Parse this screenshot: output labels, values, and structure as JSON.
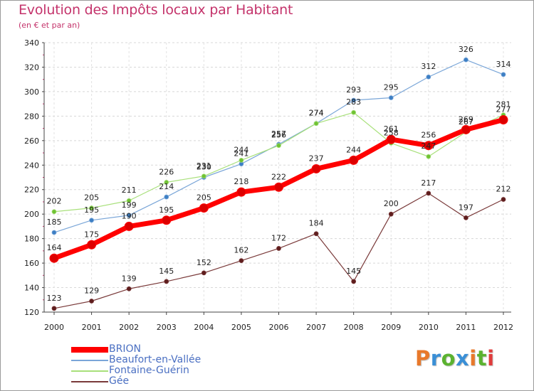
{
  "header": {
    "title": "Evolution des Impôts locaux par Habitant",
    "subtitle": "(en € et par an)"
  },
  "logo": {
    "text": "Proxiti",
    "letter_colors": [
      "#e8792b",
      "#3a8fd6",
      "#5bb230",
      "#3a8fd6",
      "#e8792b",
      "#5bb230",
      "#e03c3c"
    ]
  },
  "chart_data": {
    "type": "line",
    "title": "Evolution des Impôts locaux par Habitant",
    "subtitle": "(en € et par an)",
    "xlabel": "",
    "ylabel": "",
    "categories": [
      "2000",
      "2001",
      "2002",
      "2003",
      "2004",
      "2005",
      "2006",
      "2007",
      "2008",
      "2009",
      "2010",
      "2011",
      "2012"
    ],
    "ylim": [
      120,
      340
    ],
    "yticks": [
      120,
      140,
      160,
      180,
      200,
      220,
      240,
      260,
      280,
      300,
      320,
      340
    ],
    "grid": "horizontal dashed",
    "legend_placement": "bottom-left",
    "series": [
      {
        "name": "BRION",
        "color": "#ff0000",
        "marker_color": "#dd0000",
        "width": 7,
        "marker": 6,
        "values": [
          164,
          175,
          190,
          195,
          205,
          218,
          222,
          237,
          244,
          261,
          256,
          269,
          277
        ],
        "label_dir": "up"
      },
      {
        "name": "Beaufort-en-Vallée",
        "color": "#7aa6d8",
        "marker_color": "#3d7fc4",
        "width": 1.2,
        "marker": 3,
        "values": [
          185,
          195,
          199,
          214,
          230,
          241,
          257,
          274,
          293,
          295,
          312,
          326,
          314
        ],
        "label_dir": "up"
      },
      {
        "name": "Fontaine-Guérin",
        "color": "#a8e07a",
        "marker_color": "#6fc233",
        "width": 1.2,
        "marker": 3,
        "values": [
          202,
          205,
          211,
          226,
          231,
          244,
          256,
          274,
          283,
          258,
          247,
          267,
          281
        ],
        "label_dir": "up"
      },
      {
        "name": "Gée",
        "color": "#7a3a3a",
        "marker_color": "#5e1d1d",
        "width": 1.2,
        "marker": 3,
        "values": [
          123,
          129,
          139,
          145,
          152,
          162,
          172,
          184,
          145,
          200,
          217,
          197,
          212
        ],
        "label_dir": "up"
      }
    ]
  }
}
